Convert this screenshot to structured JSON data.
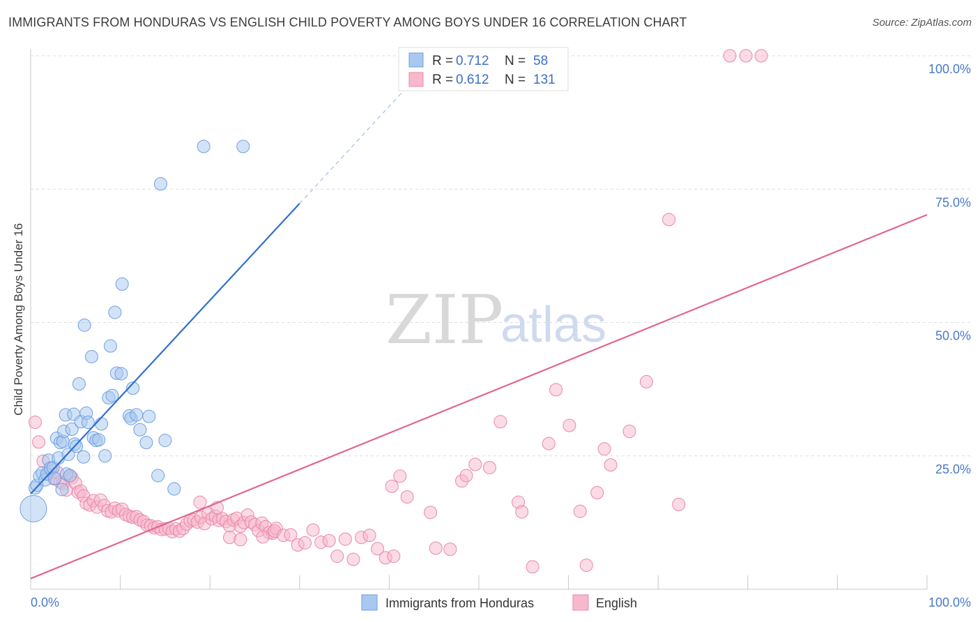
{
  "title": "IMMIGRANTS FROM HONDURAS VS ENGLISH CHILD POVERTY AMONG BOYS UNDER 16 CORRELATION CHART",
  "source": "Source: ZipAtlas.com",
  "watermark": {
    "part1": "ZIP",
    "part2": "atlas"
  },
  "colors": {
    "blue_fill": "#a8c8f0",
    "blue_stroke": "#6d9fdf",
    "blue_line": "#2f6fd0",
    "pink_fill": "#f7b8cc",
    "pink_stroke": "#e888a8",
    "pink_line": "#e06690",
    "grid": "#dddddd",
    "tick_text": "#4a79c9"
  },
  "stats": [
    {
      "r_label": "R = ",
      "r_value": "0.712",
      "n_label": "N = ",
      "n_value": "58"
    },
    {
      "r_label": "R = ",
      "r_value": "0.612",
      "n_label": "N = ",
      "n_value": "131"
    }
  ],
  "chart_data": {
    "type": "scatter",
    "title": "IMMIGRANTS FROM HONDURAS VS ENGLISH CHILD POVERTY AMONG BOYS UNDER 16 CORRELATION CHART",
    "xlabel": "",
    "ylabel": "Child Poverty Among Boys Under 16",
    "xlim": [
      0,
      100
    ],
    "ylim": [
      0,
      100
    ],
    "x_tick_labels": [
      "0.0%",
      "100.0%"
    ],
    "y_ticks": [
      25,
      50,
      75,
      100
    ],
    "y_tick_labels": [
      "25.0%",
      "50.0%",
      "75.0%",
      "100.0%"
    ],
    "grid": true,
    "legend": [
      "Immigrants from Honduras",
      "English"
    ],
    "series": [
      {
        "name": "Immigrants from Honduras",
        "r": 0.712,
        "n": 58,
        "trend": {
          "x0": 0,
          "y0": 17.9,
          "x1": 30,
          "y1": 72.3,
          "dash_to_x": 43,
          "dash_to_y": 96
        },
        "points": [
          [
            0.3,
            15.1,
            "L"
          ],
          [
            0.5,
            19.0
          ],
          [
            0.7,
            19.5
          ],
          [
            1.0,
            21.2
          ],
          [
            1.3,
            21.8
          ],
          [
            1.6,
            20.5
          ],
          [
            1.8,
            21.6
          ],
          [
            2.0,
            24.2
          ],
          [
            2.2,
            22.7
          ],
          [
            2.5,
            22.8
          ],
          [
            2.7,
            20.8
          ],
          [
            2.9,
            28.3
          ],
          [
            3.1,
            24.6
          ],
          [
            3.3,
            27.5
          ],
          [
            3.5,
            18.7
          ],
          [
            3.6,
            27.7
          ],
          [
            3.7,
            29.6
          ],
          [
            3.9,
            32.7
          ],
          [
            4.0,
            21.6
          ],
          [
            4.2,
            25.3
          ],
          [
            4.4,
            21.3
          ],
          [
            4.6,
            30.0
          ],
          [
            4.8,
            32.8
          ],
          [
            4.9,
            27.2
          ],
          [
            5.1,
            26.8
          ],
          [
            5.4,
            38.5
          ],
          [
            5.6,
            31.4
          ],
          [
            5.9,
            24.8
          ],
          [
            6.0,
            49.5
          ],
          [
            6.2,
            33.0
          ],
          [
            6.4,
            31.3
          ],
          [
            6.8,
            43.6
          ],
          [
            7.0,
            28.4
          ],
          [
            7.3,
            27.9
          ],
          [
            7.6,
            28.0
          ],
          [
            7.9,
            31.0
          ],
          [
            8.3,
            25.0
          ],
          [
            8.7,
            35.9
          ],
          [
            8.9,
            45.6
          ],
          [
            9.1,
            36.3
          ],
          [
            9.4,
            51.9
          ],
          [
            9.6,
            40.5
          ],
          [
            10.1,
            40.4
          ],
          [
            10.2,
            57.2
          ],
          [
            11.0,
            32.5
          ],
          [
            11.2,
            32.0
          ],
          [
            11.4,
            37.7
          ],
          [
            11.8,
            32.7
          ],
          [
            12.2,
            29.9
          ],
          [
            12.9,
            27.5
          ],
          [
            13.2,
            32.4
          ],
          [
            14.2,
            21.3
          ],
          [
            14.5,
            76.0
          ],
          [
            15.0,
            27.9
          ],
          [
            16.0,
            18.8
          ],
          [
            19.3,
            83.0
          ],
          [
            23.7,
            83.0
          ]
        ]
      },
      {
        "name": "English",
        "r": 0.612,
        "n": 131,
        "trend": {
          "x0": 0,
          "y0": 2.0,
          "x1": 100,
          "y1": 70.2
        },
        "points": [
          [
            0.5,
            31.3
          ],
          [
            0.9,
            27.6
          ],
          [
            1.4,
            24.0
          ],
          [
            1.9,
            21.6
          ],
          [
            2.3,
            22.5
          ],
          [
            2.6,
            20.7
          ],
          [
            3.0,
            21.9
          ],
          [
            3.3,
            20.1
          ],
          [
            3.6,
            19.8
          ],
          [
            4.0,
            18.6
          ],
          [
            4.3,
            21.2
          ],
          [
            4.6,
            20.9
          ],
          [
            5.0,
            19.9
          ],
          [
            5.3,
            18.2
          ],
          [
            5.6,
            18.4
          ],
          [
            5.9,
            17.5
          ],
          [
            6.2,
            16.1
          ],
          [
            6.6,
            15.8
          ],
          [
            7.0,
            16.6
          ],
          [
            7.4,
            15.4
          ],
          [
            7.8,
            16.7
          ],
          [
            8.2,
            15.7
          ],
          [
            8.6,
            14.7
          ],
          [
            9.0,
            14.5
          ],
          [
            9.4,
            15.2
          ],
          [
            9.8,
            14.7
          ],
          [
            10.2,
            15.0
          ],
          [
            10.6,
            14.0
          ],
          [
            11.0,
            13.7
          ],
          [
            11.4,
            13.5
          ],
          [
            11.8,
            13.6
          ],
          [
            12.2,
            13.0
          ],
          [
            12.6,
            12.7
          ],
          [
            13.0,
            12.0
          ],
          [
            13.4,
            11.9
          ],
          [
            13.8,
            11.5
          ],
          [
            14.2,
            11.7
          ],
          [
            14.6,
            11.2
          ],
          [
            15.0,
            11.3
          ],
          [
            15.4,
            11.4
          ],
          [
            15.8,
            10.8
          ],
          [
            16.2,
            11.3
          ],
          [
            16.6,
            10.9
          ],
          [
            17.0,
            11.4
          ],
          [
            17.4,
            12.2
          ],
          [
            17.8,
            12.8
          ],
          [
            18.2,
            13.0
          ],
          [
            18.6,
            12.6
          ],
          [
            19.0,
            13.5
          ],
          [
            19.4,
            12.3
          ],
          [
            19.8,
            14.2
          ],
          [
            20.2,
            13.2
          ],
          [
            20.6,
            13.7
          ],
          [
            21.0,
            12.9
          ],
          [
            21.4,
            13.2
          ],
          [
            21.8,
            12.7
          ],
          [
            22.2,
            11.9
          ],
          [
            22.6,
            13.0
          ],
          [
            23.0,
            13.3
          ],
          [
            23.4,
            11.8
          ],
          [
            23.8,
            12.5
          ],
          [
            24.2,
            13.9
          ],
          [
            24.6,
            12.6
          ],
          [
            25.0,
            12.1
          ],
          [
            25.4,
            11.0
          ],
          [
            25.8,
            12.4
          ],
          [
            26.2,
            11.7
          ],
          [
            26.6,
            10.6
          ],
          [
            27.0,
            10.5
          ],
          [
            27.4,
            11.4
          ],
          [
            18.9,
            16.3
          ],
          [
            20.8,
            15.3
          ],
          [
            22.2,
            9.7
          ],
          [
            23.4,
            9.3
          ],
          [
            25.9,
            9.8
          ],
          [
            27.2,
            10.9
          ],
          [
            28.2,
            10.1
          ],
          [
            29.0,
            10.2
          ],
          [
            29.8,
            8.3
          ],
          [
            30.6,
            8.7
          ],
          [
            31.5,
            11.1
          ],
          [
            32.4,
            8.8
          ],
          [
            33.3,
            9.1
          ],
          [
            34.2,
            6.2
          ],
          [
            35.1,
            9.4
          ],
          [
            36.0,
            5.6
          ],
          [
            36.9,
            9.7
          ],
          [
            37.8,
            10.1
          ],
          [
            38.7,
            7.6
          ],
          [
            39.6,
            5.9
          ],
          [
            40.5,
            6.2
          ],
          [
            40.3,
            19.3
          ],
          [
            41.2,
            21.2
          ],
          [
            42.0,
            17.3
          ],
          [
            44.6,
            14.4
          ],
          [
            45.2,
            7.7
          ],
          [
            46.8,
            7.5
          ],
          [
            48.1,
            20.3
          ],
          [
            48.6,
            21.3
          ],
          [
            49.6,
            23.4
          ],
          [
            51.2,
            22.8
          ],
          [
            52.4,
            31.4
          ],
          [
            54.4,
            16.3
          ],
          [
            54.8,
            14.5
          ],
          [
            56.0,
            4.2
          ],
          [
            57.8,
            27.3
          ],
          [
            58.6,
            37.4
          ],
          [
            60.1,
            30.7
          ],
          [
            61.3,
            14.6
          ],
          [
            62.0,
            4.5
          ],
          [
            63.2,
            18.1
          ],
          [
            64.0,
            26.3
          ],
          [
            64.7,
            23.3
          ],
          [
            66.8,
            29.6
          ],
          [
            68.7,
            38.9
          ],
          [
            71.2,
            69.3
          ],
          [
            72.3,
            15.9
          ],
          [
            78.0,
            100
          ],
          [
            79.8,
            100
          ],
          [
            81.5,
            100
          ]
        ]
      }
    ]
  },
  "labels": {
    "y_axis": "Child Poverty Among Boys Under 16",
    "x_left": "0.0%",
    "x_right": "100.0%",
    "legend": {
      "series1": "Immigrants from Honduras",
      "series2": "English"
    }
  }
}
